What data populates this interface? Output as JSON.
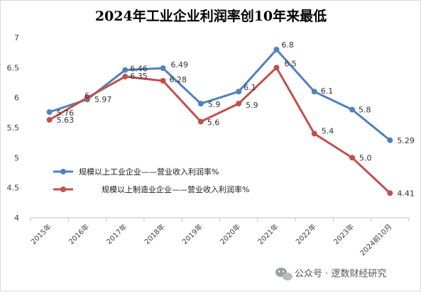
{
  "chart_data": {
    "type": "line",
    "title": "2024年工业企业利润率创10年来最低",
    "categories": [
      "2015年",
      "2016年",
      "2017年",
      "2018年",
      "2019年",
      "2020年",
      "2021年",
      "2022年",
      "2023年",
      "2024前10月"
    ],
    "series": [
      {
        "name": "规模以上工业企业——营业收入利润率%",
        "color": "#4f81bd",
        "values": [
          5.76,
          5.97,
          6.46,
          6.49,
          5.9,
          6.1,
          6.8,
          6.1,
          5.8,
          5.29
        ],
        "labels": [
          "5.76",
          "5.97",
          "6.46",
          "6.49",
          "5.9",
          "6.1",
          "6.8",
          "6.1",
          "5.8",
          "5.29"
        ]
      },
      {
        "name": "规模以上制造业企业——营业收入利润率%",
        "color": "#c0504d",
        "values": [
          5.63,
          6.0,
          6.35,
          6.28,
          5.6,
          5.9,
          6.5,
          5.4,
          5.0,
          4.41
        ],
        "labels": [
          "5.63",
          "6",
          "6.35",
          "6.28",
          "5.6",
          "5.9",
          "6.5",
          "5.4",
          "5.0",
          "4.41"
        ]
      }
    ],
    "ylim": [
      4,
      7
    ],
    "yticks": [
      "4",
      "4.5",
      "5",
      "5.5",
      "6",
      "6.5",
      "7"
    ],
    "grid": false,
    "legend_position": "center-left"
  },
  "watermark": {
    "text": "公众号 · 逻数财经研究",
    "icon": "wechat-icon"
  }
}
